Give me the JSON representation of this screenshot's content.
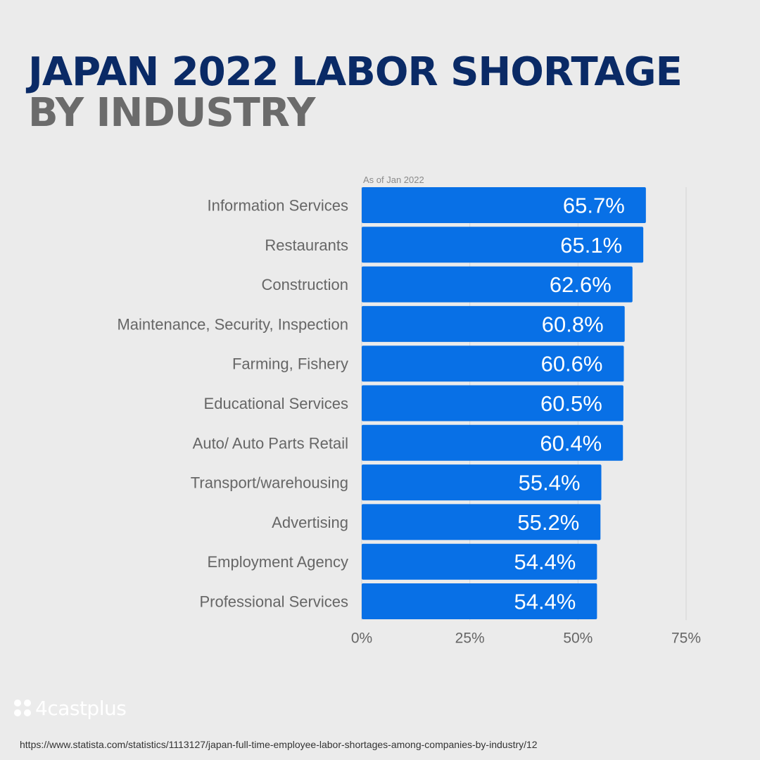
{
  "title": {
    "line1": "JAPAN 2022 LABOR SHORTAGE",
    "line2": "BY INDUSTRY"
  },
  "colors": {
    "title_primary": "#0a2a66",
    "title_secondary": "#6b6b6b",
    "bar": "#0870e6",
    "label": "#666666",
    "background": "#ebebeb"
  },
  "chart_data": {
    "type": "bar",
    "orientation": "horizontal",
    "subtitle": "As of Jan 2022",
    "categories": [
      "Information Services",
      "Restaurants",
      "Construction",
      "Maintenance, Security, Inspection",
      "Farming, Fishery",
      "Educational Services",
      "Auto/ Auto Parts Retail",
      "Transport/warehousing",
      "Advertising",
      "Employment Agency",
      "Professional Services"
    ],
    "values": [
      65.7,
      65.1,
      62.6,
      60.8,
      60.6,
      60.5,
      60.4,
      55.4,
      55.2,
      54.4,
      54.4
    ],
    "value_labels": [
      "65.7%",
      "65.1%",
      "62.6%",
      "60.8%",
      "60.6%",
      "60.5%",
      "60.4%",
      "55.4%",
      "55.2%",
      "54.4%",
      "54.4%"
    ],
    "x_ticks": [
      0,
      25,
      50,
      75
    ],
    "x_tick_labels": [
      "0%",
      "25%",
      "50%",
      "75%"
    ],
    "xlim": [
      0,
      75
    ],
    "grid": true,
    "legend": "none"
  },
  "logo": {
    "text": "4castplus"
  },
  "source": "https://www.statista.com/statistics/1113127/japan-full-time-employee-labor-shortages-among-companies-by-industry/12"
}
